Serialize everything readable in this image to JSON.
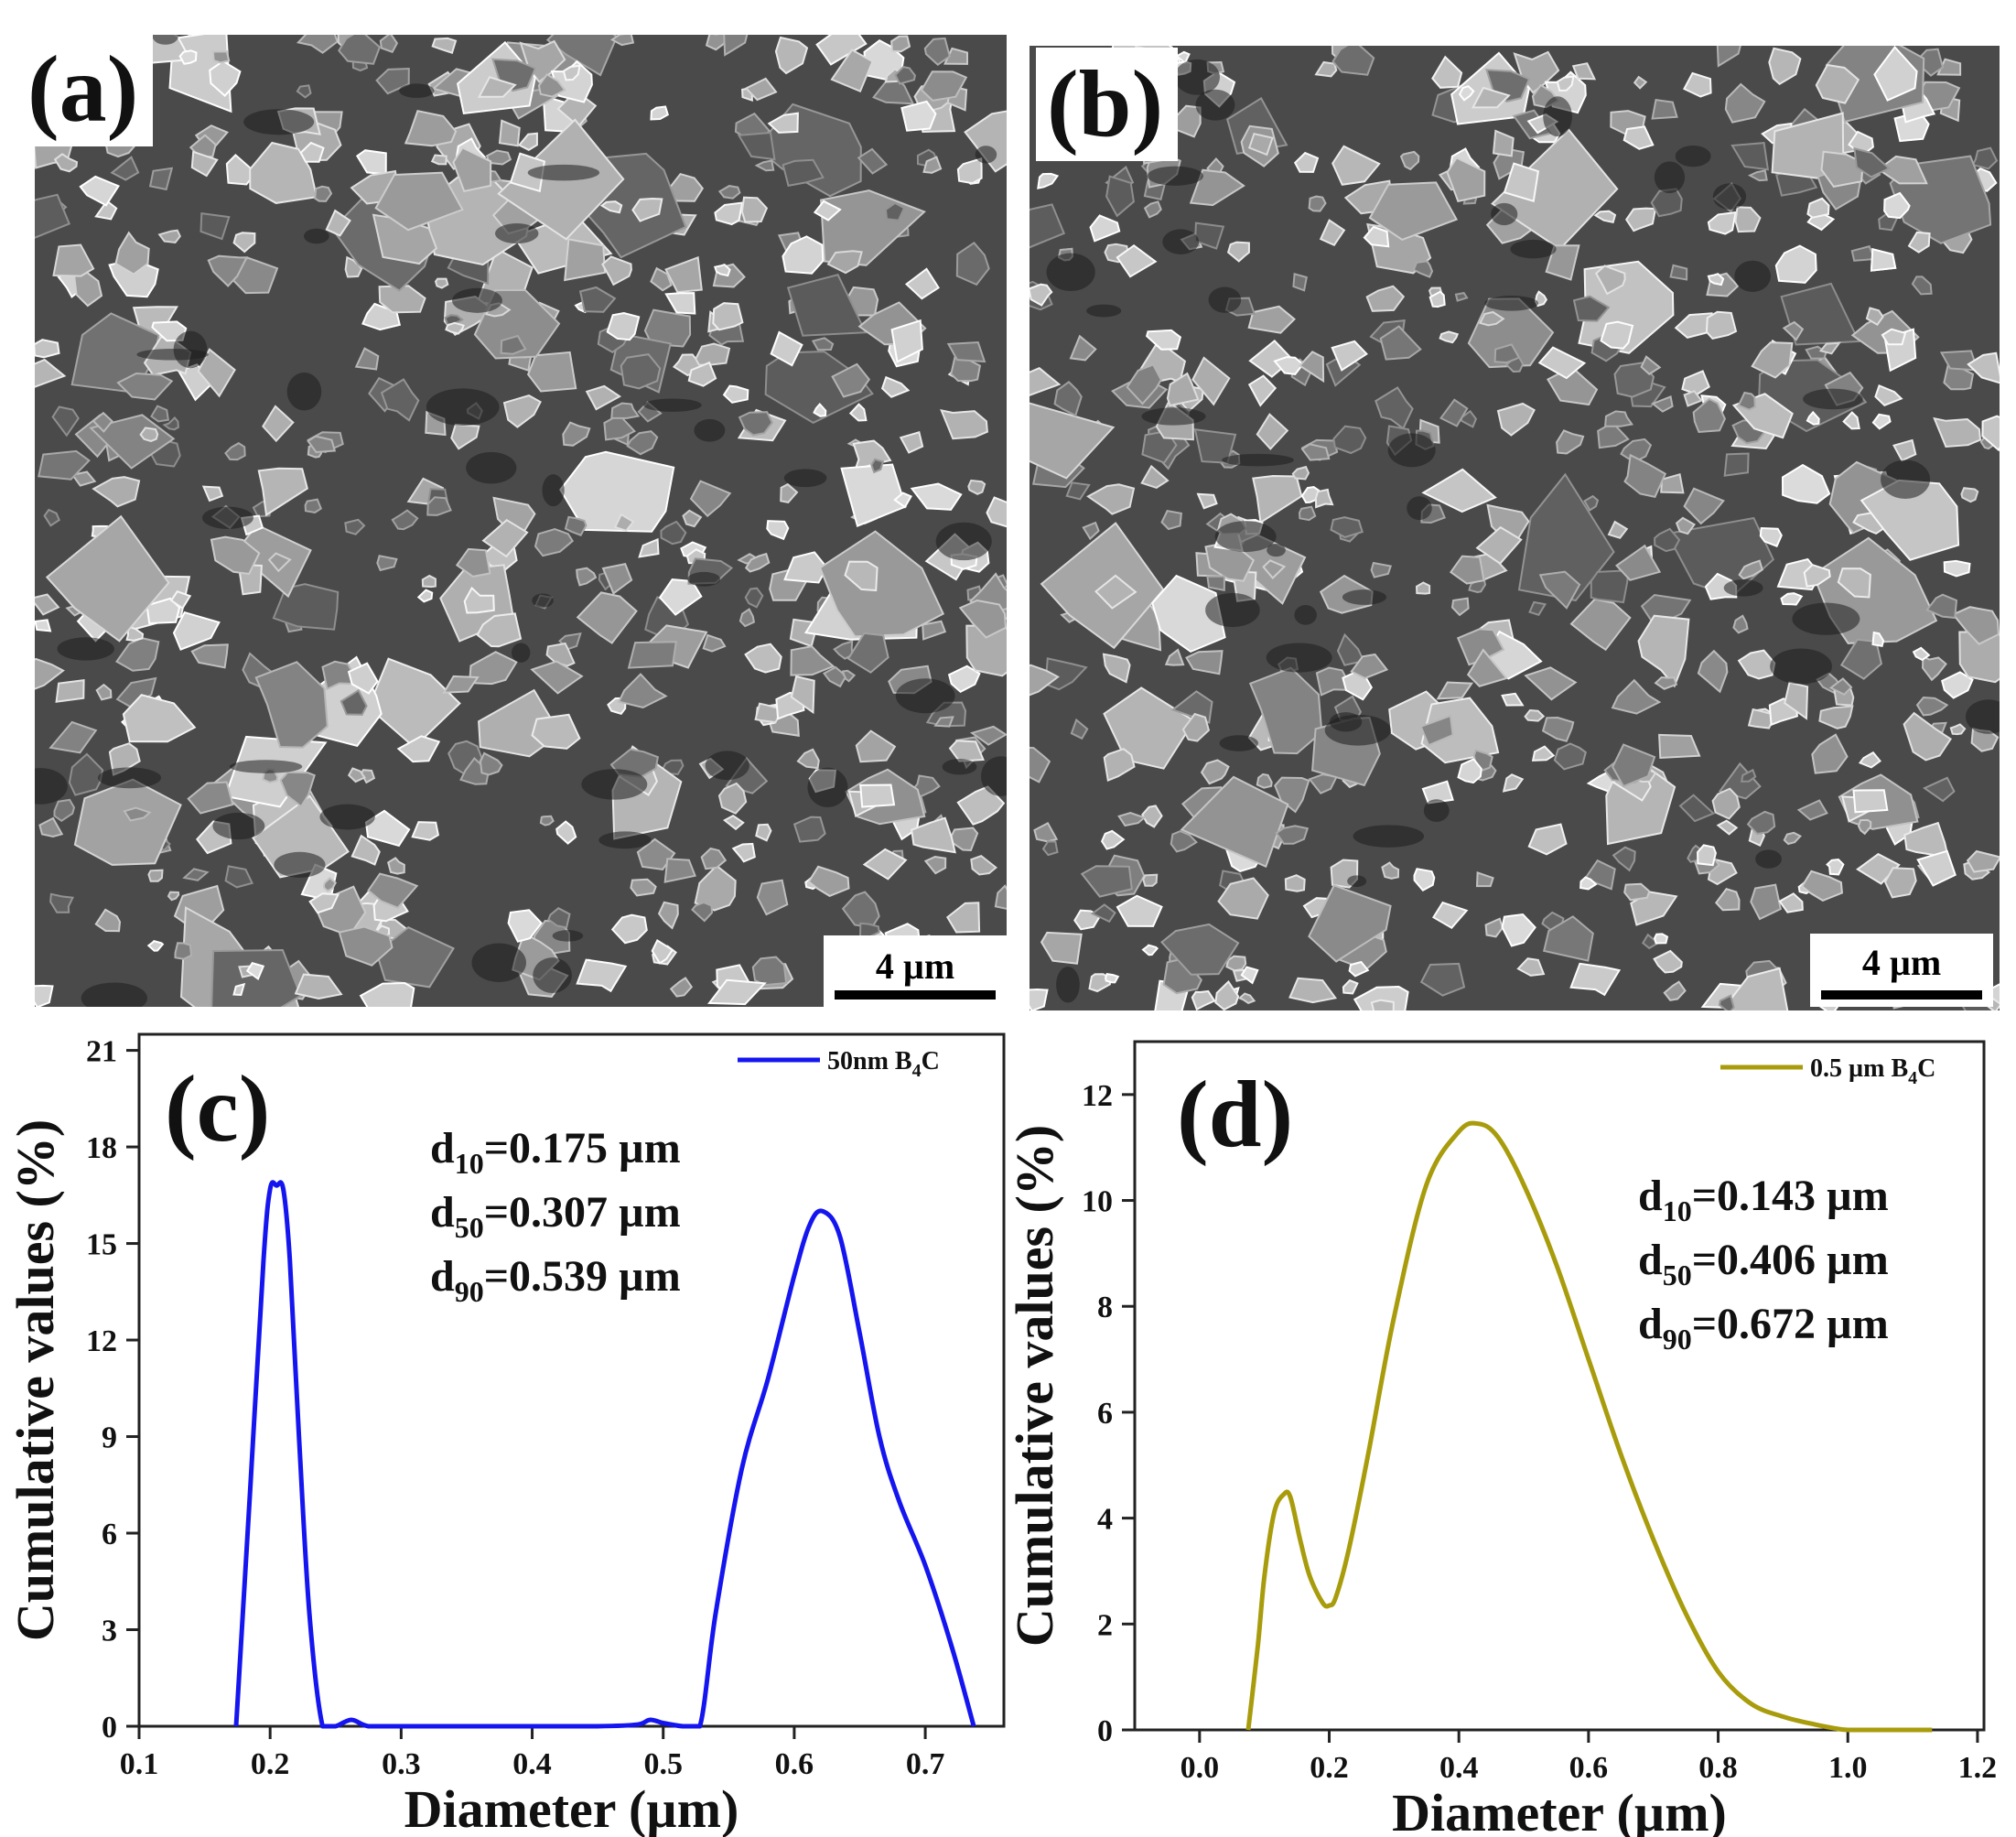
{
  "panels": {
    "a": {
      "label": "(a)",
      "scale_bar": "4 µm"
    },
    "b": {
      "label": "(b)",
      "scale_bar": "4 µm"
    },
    "c": {
      "label": "(c)"
    },
    "d": {
      "label": "(d)"
    }
  },
  "colors": {
    "c_line": "#1515f0",
    "d_line": "#a89c0c",
    "sem_bg": "#4a4a4a"
  },
  "chart_data": [
    {
      "panel": "c",
      "type": "line",
      "xlabel": "Diameter (µm)",
      "ylabel": "Cumulative values (%)",
      "xlim": [
        0.1,
        0.76
      ],
      "ylim": [
        0,
        21.5
      ],
      "xticks": [
        "0.1",
        "0.2",
        "0.3",
        "0.4",
        "0.5",
        "0.6",
        "0.7"
      ],
      "yticks": [
        "0",
        "3",
        "6",
        "9",
        "12",
        "15",
        "18",
        "21"
      ],
      "grid": false,
      "legend_position": "top-right",
      "series": [
        {
          "name": "50nm B4C",
          "x": [
            0.174,
            0.185,
            0.195,
            0.2,
            0.205,
            0.21,
            0.215,
            0.222,
            0.23,
            0.24,
            0.25,
            0.262,
            0.275,
            0.3,
            0.35,
            0.4,
            0.45,
            0.48,
            0.49,
            0.5,
            0.515,
            0.528,
            0.54,
            0.56,
            0.58,
            0.6,
            0.612,
            0.622,
            0.635,
            0.65,
            0.665,
            0.68,
            0.7,
            0.72,
            0.737
          ],
          "y": [
            0,
            7.5,
            14.5,
            16.7,
            16.8,
            16.7,
            14.5,
            9.0,
            3.5,
            0,
            0,
            0.2,
            0,
            0,
            0,
            0,
            0,
            0.05,
            0.2,
            0.1,
            0,
            0,
            3.5,
            8.0,
            10.8,
            14.0,
            15.6,
            16.0,
            15.2,
            12.2,
            9.0,
            7.0,
            5.0,
            2.5,
            0
          ]
        }
      ],
      "annotations": [
        {
          "main": "d",
          "sub": "10",
          "rest": "=0.175 µm"
        },
        {
          "main": "d",
          "sub": "50",
          "rest": "=0.307 µm"
        },
        {
          "main": "d",
          "sub": "90",
          "rest": "=0.539 µm"
        }
      ]
    },
    {
      "panel": "d",
      "type": "line",
      "xlabel": "Diameter (µm)",
      "ylabel": "Cumulative values (%)",
      "xlim": [
        -0.1,
        1.21
      ],
      "ylim": [
        0,
        13
      ],
      "xticks": [
        "0.0",
        "0.2",
        "0.4",
        "0.6",
        "0.8",
        "1.0",
        "1.2"
      ],
      "yticks": [
        "0",
        "2",
        "4",
        "6",
        "8",
        "10",
        "12"
      ],
      "grid": false,
      "legend_position": "top-right",
      "series": [
        {
          "name": "0.5 µm B4C",
          "x": [
            0.075,
            0.09,
            0.1,
            0.115,
            0.13,
            0.14,
            0.155,
            0.17,
            0.19,
            0.2,
            0.21,
            0.23,
            0.26,
            0.3,
            0.35,
            0.4,
            0.43,
            0.46,
            0.5,
            0.55,
            0.6,
            0.65,
            0.7,
            0.75,
            0.8,
            0.85,
            0.9,
            0.95,
            0.98,
            1.0,
            1.05,
            1.13
          ],
          "y": [
            0,
            1.6,
            2.9,
            4.1,
            4.45,
            4.4,
            3.6,
            2.9,
            2.4,
            2.35,
            2.5,
            3.4,
            5.2,
            7.8,
            10.3,
            11.3,
            11.45,
            11.2,
            10.3,
            8.8,
            7.0,
            5.2,
            3.6,
            2.2,
            1.1,
            0.5,
            0.25,
            0.1,
            0.03,
            0,
            0,
            0
          ]
        }
      ],
      "annotations": [
        {
          "main": "d",
          "sub": "10",
          "rest": "=0.143 µm"
        },
        {
          "main": "d",
          "sub": "50",
          "rest": "=0.406 µm"
        },
        {
          "main": "d",
          "sub": "90",
          "rest": "=0.672 µm"
        }
      ]
    }
  ]
}
